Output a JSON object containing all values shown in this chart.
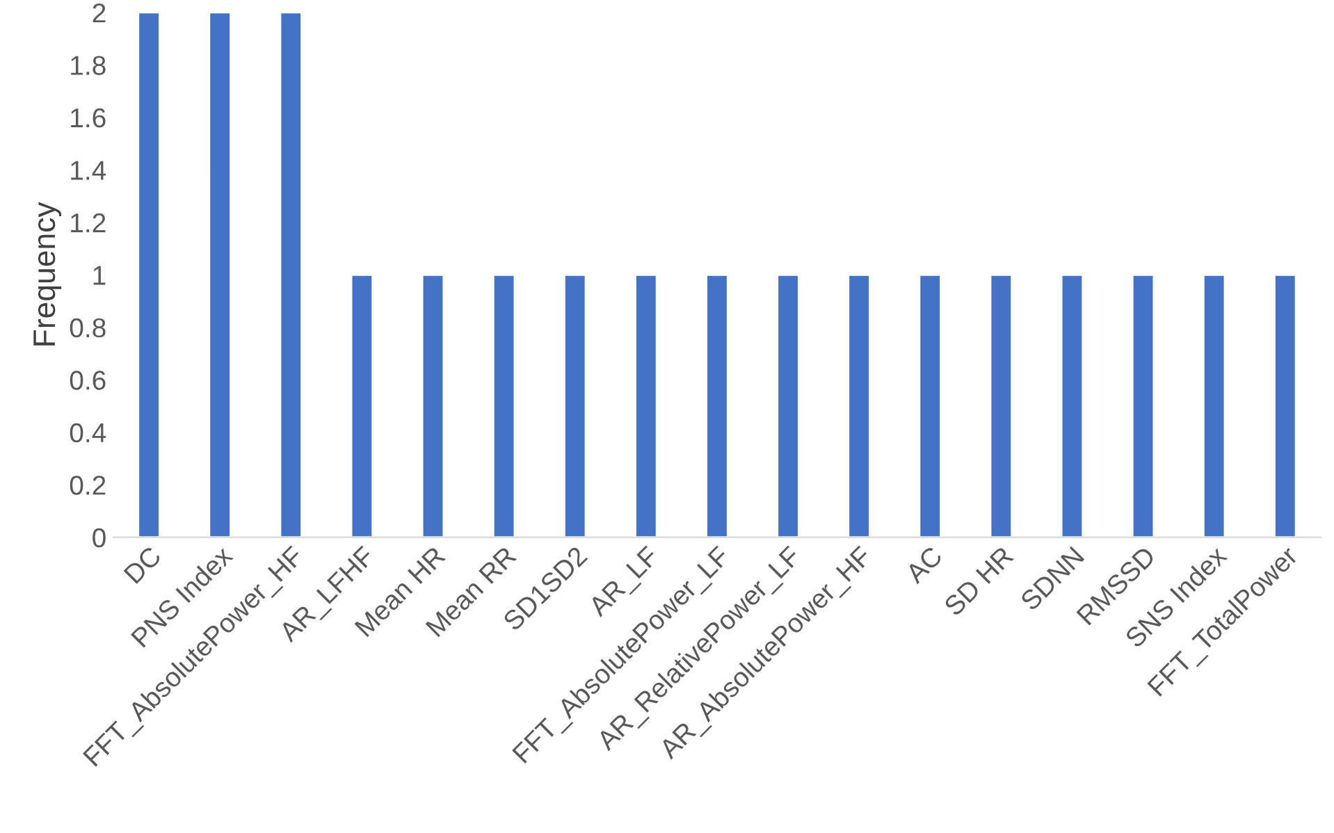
{
  "chart_data": {
    "type": "bar",
    "ylabel": "Frequency",
    "categories": [
      "DC",
      "PNS Index",
      "FFT_AbsolutePower_HF",
      "AR_LFHF",
      "Mean HR",
      "Mean RR",
      "SD1SD2",
      "AR_LF",
      "FFT_AbsolutePower_LF",
      "AR_RelativePower_LF",
      "AR_AbsolutePower_HF",
      "AC",
      "SD HR",
      "SDNN",
      "RMSSD",
      "SNS Index",
      "FFT_TotalPower"
    ],
    "values": [
      2,
      2,
      2,
      1,
      1,
      1,
      1,
      1,
      1,
      1,
      1,
      1,
      1,
      1,
      1,
      1,
      1
    ],
    "color": "#4472c4",
    "ylim": [
      0,
      2
    ],
    "yticks": [
      0,
      0.2,
      0.4,
      0.6,
      0.8,
      1,
      1.2,
      1.4,
      1.6,
      1.8,
      2
    ],
    "grid": false,
    "legend": false
  }
}
